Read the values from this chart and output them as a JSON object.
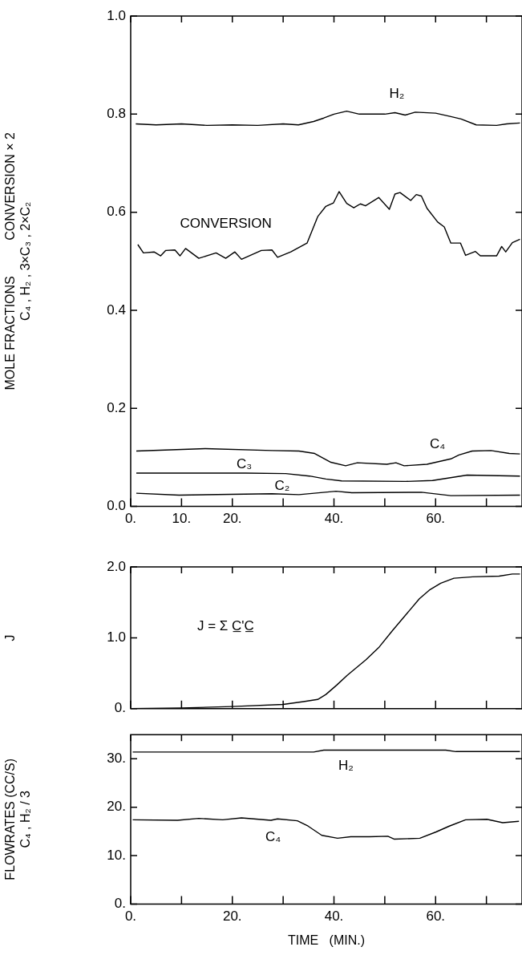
{
  "chart_data": [
    {
      "type": "line",
      "ylabel": "MOLE FRACTIONS          CONVERSION × 2\nC₄ , H₂ , 3×C₃ , 2×C₂",
      "xlim": [
        0,
        77
      ],
      "ylim": [
        0,
        1
      ],
      "xticks": [
        {
          "value": 0,
          "label": "0."
        },
        {
          "value": 10,
          "label": "10."
        },
        {
          "value": 20,
          "label": "20."
        },
        {
          "value": 30,
          "label": null
        },
        {
          "value": 40,
          "label": "40."
        },
        {
          "value": 50,
          "label": null
        },
        {
          "value": 60,
          "label": "60."
        },
        {
          "value": 70,
          "label": null
        }
      ],
      "yticks": [
        {
          "value": 0,
          "label": "0.0"
        },
        {
          "value": 0.2,
          "label": "0.2"
        },
        {
          "value": 0.4,
          "label": "0.4"
        },
        {
          "value": 0.6,
          "label": "0.6"
        },
        {
          "value": 0.8,
          "label": "0.8"
        },
        {
          "value": 1,
          "label": "1.0"
        }
      ],
      "legend": false,
      "marker": "none",
      "line_style": "solid",
      "series": [
        {
          "name": "H₂",
          "color": "#000000",
          "x": [
            1,
            5,
            10,
            15,
            20,
            25,
            30,
            33,
            36,
            38,
            40,
            42.5,
            45,
            50,
            52,
            54,
            56,
            60,
            63,
            65,
            68,
            72,
            74,
            76.6
          ],
          "values": [
            0.78,
            0.778,
            0.78,
            0.777,
            0.778,
            0.777,
            0.78,
            0.778,
            0.785,
            0.792,
            0.8,
            0.806,
            0.8,
            0.8,
            0.803,
            0.798,
            0.804,
            0.802,
            0.795,
            0.79,
            0.778,
            0.777,
            0.78,
            0.782
          ]
        },
        {
          "name": "CONVERSION",
          "color": "#000000",
          "x": [
            1.4,
            2.5,
            4.6,
            5.9,
            6.9,
            8.7,
            9.7,
            10.8,
            13.4,
            16.8,
            18.7,
            20.5,
            21.8,
            25.7,
            27.8,
            28.9,
            31.5,
            34.7,
            36.8,
            38.4,
            39.9,
            41,
            42.5,
            43.9,
            45.2,
            46.2,
            48.8,
            50.9,
            52,
            53,
            55.1,
            56.2,
            57.2,
            58.3,
            60.4,
            61.7,
            63,
            64.9,
            65.9,
            67.8,
            68.8,
            72,
            73,
            73.8,
            75.1,
            76.6
          ],
          "values": [
            0.534,
            0.517,
            0.519,
            0.511,
            0.522,
            0.523,
            0.511,
            0.526,
            0.506,
            0.517,
            0.506,
            0.519,
            0.504,
            0.522,
            0.523,
            0.508,
            0.519,
            0.537,
            0.591,
            0.612,
            0.619,
            0.642,
            0.618,
            0.609,
            0.617,
            0.613,
            0.63,
            0.606,
            0.637,
            0.64,
            0.624,
            0.636,
            0.633,
            0.608,
            0.58,
            0.57,
            0.537,
            0.537,
            0.512,
            0.52,
            0.511,
            0.511,
            0.53,
            0.519,
            0.538,
            0.545
          ]
        },
        {
          "name": "C₄",
          "color": "#000000",
          "x": [
            1.1,
            14.7,
            27.8,
            33.1,
            36.2,
            39.4,
            42.3,
            44.6,
            50.4,
            52.2,
            53.8,
            58.3,
            63,
            64.6,
            67.2,
            70.9,
            74.5,
            76.6
          ],
          "values": [
            0.113,
            0.118,
            0.114,
            0.113,
            0.108,
            0.09,
            0.083,
            0.089,
            0.086,
            0.089,
            0.083,
            0.086,
            0.097,
            0.105,
            0.113,
            0.114,
            0.108,
            0.107
          ]
        },
        {
          "name": "C₃",
          "color": "#000000",
          "x": [
            1.1,
            22.6,
            30.5,
            35.2,
            38.4,
            41.5,
            54.1,
            59.4,
            66.2,
            76.6
          ],
          "values": [
            0.068,
            0.068,
            0.067,
            0.062,
            0.056,
            0.052,
            0.051,
            0.053,
            0.064,
            0.062
          ]
        },
        {
          "name": "C₂",
          "color": "#000000",
          "x": [
            1.1,
            9.5,
            27.8,
            33.1,
            40.4,
            43.5,
            57.2,
            63,
            76.6
          ],
          "values": [
            0.027,
            0.023,
            0.026,
            0.024,
            0.031,
            0.028,
            0.029,
            0.022,
            0.023
          ]
        }
      ]
    },
    {
      "type": "line",
      "ylabel": "J",
      "xlim": [
        0,
        77
      ],
      "ylim": [
        0,
        2
      ],
      "tick_labels": "y",
      "xticks": [
        {
          "value": 0,
          "label": null
        },
        {
          "value": 10,
          "label": null
        },
        {
          "value": 20,
          "label": null
        },
        {
          "value": 30,
          "label": null
        },
        {
          "value": 40,
          "label": null
        },
        {
          "value": 50,
          "label": null
        },
        {
          "value": 60,
          "label": null
        },
        {
          "value": 70,
          "label": null
        }
      ],
      "yticks": [
        {
          "value": 0,
          "label": "0."
        },
        {
          "value": 1,
          "label": "1.0"
        },
        {
          "value": 2,
          "label": "2.0"
        }
      ],
      "legend": false,
      "marker": "none",
      "line_style": "solid",
      "series": [
        {
          "color": "#000000",
          "x": [
            0,
            10,
            20,
            30,
            34,
            36.8,
            38.4,
            40.5,
            42.6,
            46.3,
            48.9,
            51.5,
            54.2,
            56.8,
            58.9,
            61,
            63.6,
            67.3,
            72.5,
            75.1,
            76.6
          ],
          "values": [
            0,
            0.01,
            0.03,
            0.06,
            0.1,
            0.13,
            0.2,
            0.33,
            0.47,
            0.69,
            0.87,
            1.1,
            1.33,
            1.55,
            1.68,
            1.77,
            1.84,
            1.86,
            1.87,
            1.9,
            1.9
          ]
        }
      ],
      "annotations": [
        "J = Σ C̲'C̲"
      ]
    },
    {
      "type": "line",
      "xlabel": "TIME   (MIN.)",
      "ylabel": "FLOWRATES (CC/S)\nC₄ , H₂ / 3",
      "xlim": [
        0,
        77
      ],
      "ylim": [
        0,
        35
      ],
      "xticks": [
        {
          "value": 0,
          "label": "0."
        },
        {
          "value": 10,
          "label": null
        },
        {
          "value": 20,
          "label": "20."
        },
        {
          "value": 30,
          "label": null
        },
        {
          "value": 40,
          "label": "40."
        },
        {
          "value": 50,
          "label": null
        },
        {
          "value": 60,
          "label": "60."
        },
        {
          "value": 70,
          "label": null
        }
      ],
      "yticks": [
        {
          "value": 0,
          "label": "0."
        },
        {
          "value": 10,
          "label": "10."
        },
        {
          "value": 20,
          "label": "20."
        },
        {
          "value": 30,
          "label": "30."
        }
      ],
      "legend": false,
      "marker": "none",
      "line_style": "solid",
      "series": [
        {
          "name": "H₂",
          "color": "#000000",
          "x": [
            0.4,
            36,
            38,
            62,
            64,
            76.6
          ],
          "values": [
            31.4,
            31.4,
            31.8,
            31.8,
            31.5,
            31.5
          ]
        },
        {
          "name": "C₄",
          "color": "#000000",
          "x": [
            0.4,
            9.2,
            13.4,
            18.1,
            21.8,
            27.6,
            28.9,
            32.8,
            34.9,
            37.6,
            40.7,
            43.3,
            47,
            50.6,
            51.9,
            56.9,
            60.1,
            62.7,
            65.9,
            70.1,
            73.2,
            76.4
          ],
          "values": [
            17.4,
            17.3,
            17.7,
            17.4,
            17.8,
            17.3,
            17.6,
            17.2,
            16.1,
            14.2,
            13.6,
            13.9,
            13.9,
            14,
            13.4,
            13.6,
            14.9,
            16.1,
            17.4,
            17.5,
            16.8,
            17.1
          ]
        }
      ]
    }
  ]
}
